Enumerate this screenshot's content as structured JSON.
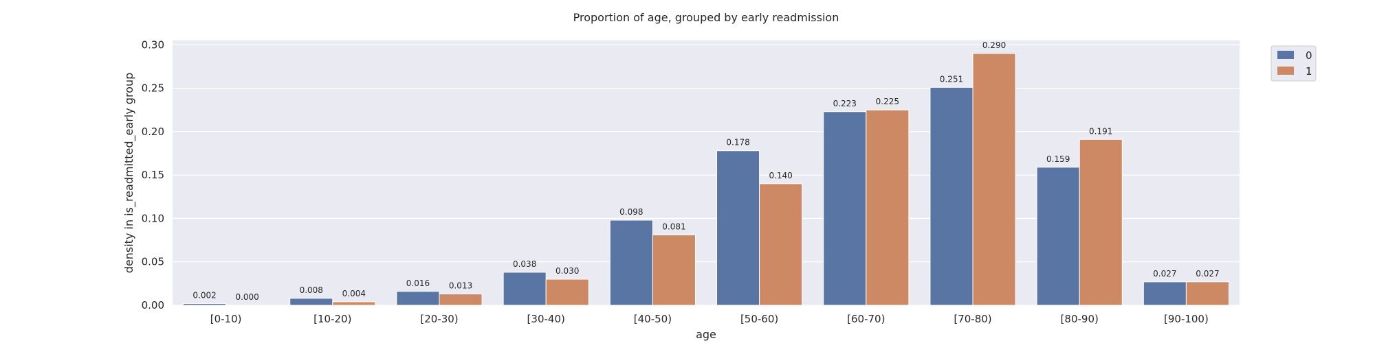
{
  "chart_data": {
    "type": "bar",
    "title": "Proportion of age, grouped by early readmission",
    "xlabel": "age",
    "ylabel": "density in is_readmitted_early group",
    "categories": [
      "[0-10)",
      "[10-20)",
      "[20-30)",
      "[30-40)",
      "[40-50)",
      "[50-60)",
      "[60-70)",
      "[70-80)",
      "[80-90)",
      "[90-100)"
    ],
    "series": [
      {
        "name": "0",
        "color": "#5875a4",
        "values": [
          0.002,
          0.008,
          0.016,
          0.038,
          0.098,
          0.178,
          0.223,
          0.251,
          0.159,
          0.027
        ]
      },
      {
        "name": "1",
        "color": "#cc8963",
        "values": [
          0.0,
          0.004,
          0.013,
          0.03,
          0.081,
          0.14,
          0.225,
          0.29,
          0.191,
          0.027
        ]
      }
    ],
    "value_labels": [
      [
        "0.002",
        "0.008",
        "0.016",
        "0.038",
        "0.098",
        "0.178",
        "0.223",
        "0.251",
        "0.159",
        "0.027"
      ],
      [
        "0.000",
        "0.004",
        "0.013",
        "0.030",
        "0.081",
        "0.140",
        "0.225",
        "0.290",
        "0.191",
        "0.027"
      ]
    ],
    "ylim": [
      0,
      0.305
    ],
    "yticks": [
      0.0,
      0.05,
      0.1,
      0.15,
      0.2,
      0.25,
      0.3
    ],
    "ytick_labels": [
      "0.00",
      "0.05",
      "0.10",
      "0.15",
      "0.20",
      "0.25",
      "0.30"
    ],
    "grid": true,
    "legend_position": "upper-right-outside",
    "plot_background": "#eaeaf2"
  }
}
